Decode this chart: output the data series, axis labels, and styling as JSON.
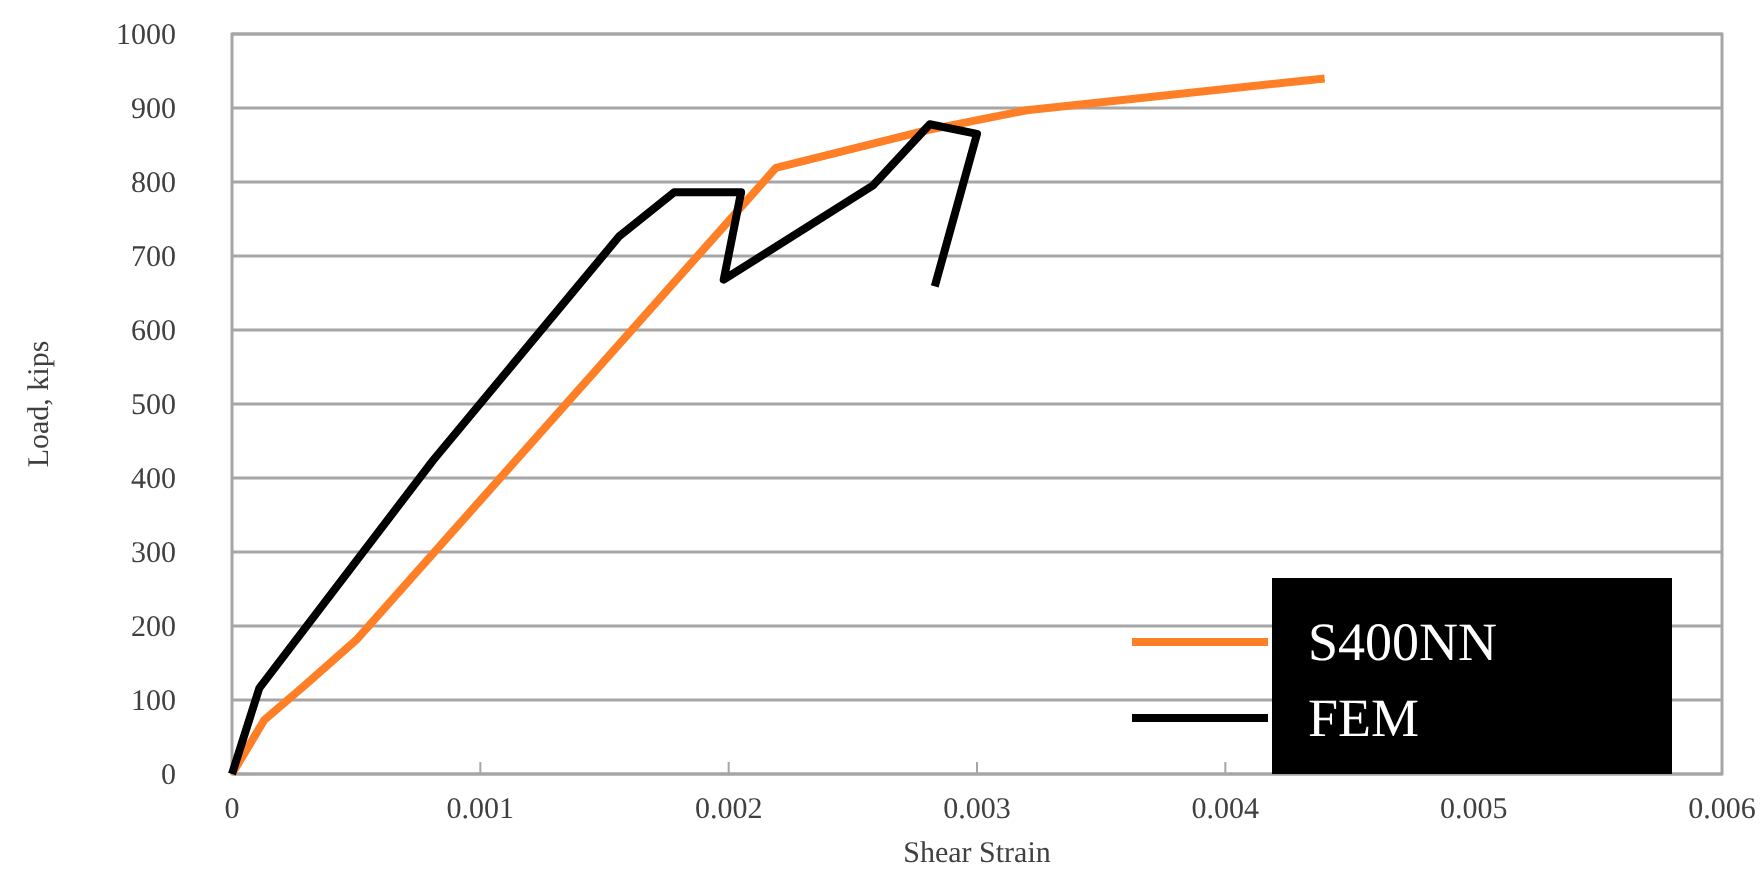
{
  "chart_data": {
    "type": "line",
    "xlabel": "Shear Strain",
    "ylabel": "Load, kips",
    "xlim": [
      0,
      0.006
    ],
    "xticks": [
      0,
      0.001,
      0.002,
      0.003,
      0.004,
      0.005,
      0.006
    ],
    "ylim": [
      0,
      1000
    ],
    "yticks": [
      0,
      100,
      200,
      300,
      400,
      500,
      600,
      700,
      800,
      900,
      1000
    ],
    "grid": "y",
    "legend": "bottom right",
    "marker": "none",
    "line_style": "solid",
    "series": [
      {
        "name": "S400NN",
        "color": "#ff7f27",
        "x": [
          0,
          0.00013,
          0.00029,
          0.0005,
          0.00219,
          0.0028,
          0.0032,
          0.0044
        ],
        "values": [
          0,
          73,
          119,
          181,
          819,
          870,
          897,
          940
        ]
      },
      {
        "name": "FEM",
        "color": "#000000",
        "x": [
          0,
          0.00011,
          0.00081,
          0.00156,
          0.00178,
          0.00205,
          0.00198,
          0.00258,
          0.00281,
          0.003,
          0.00283
        ],
        "values": [
          0,
          116,
          424,
          727,
          786,
          786,
          668,
          795,
          878,
          865,
          659
        ]
      }
    ]
  }
}
